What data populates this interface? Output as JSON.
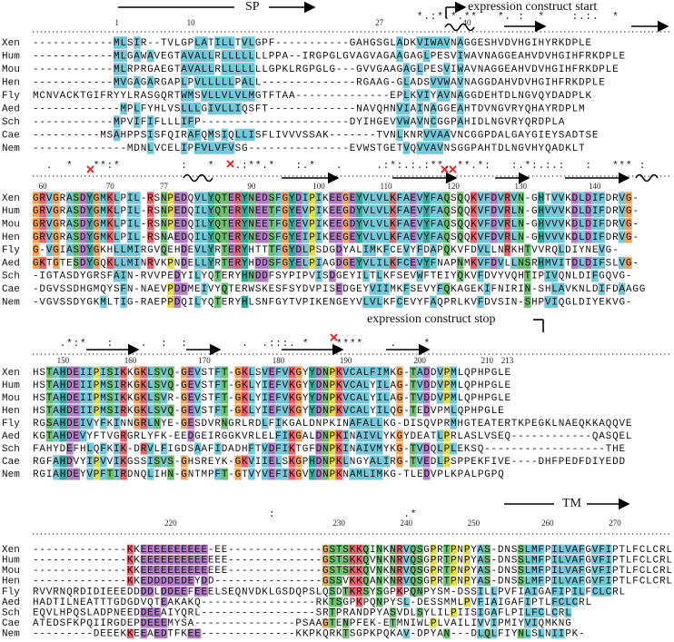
{
  "annotations": {
    "sp": "SP",
    "construct_start": "expression construct start",
    "construct_stop": "expression construct stop",
    "tm": "TM"
  },
  "blocks": [
    {
      "ruler": [
        1,
        10,
        27,
        40
      ],
      "conservation": "                                                         *.:*.*.**   *. :  *    :.:.  *",
      "rows": [
        {
          "name": "Xen",
          "sequence": "------------MLSIR--TVLGPLATILLTVLGPF-----------GAHGSGLADKVIWAVNAGGESHVDVHGIHYRKDPLE"
        },
        {
          "name": "Hum",
          "sequence": "------------MLGAWAVEGTAVALLRLLLLLLLPPA--IRGPGLGVAGVAGAAGAGLPESVIWAVNAGGEAHVDVHGIHFRKDPLE"
        },
        {
          "name": "Mou",
          "sequence": "------------MLRPRGAEGTAVALLRLLLLLLLGPKLRGPGLG---GVVGAAGAGLPESVIWAVNAGGEAHVDVHGIHFRKDPLE"
        },
        {
          "name": "Hen",
          "sequence": "------------MVGAGARGAPLPVLLLLLPALL--------------RGAAG-GLADSVVWAVNAGGDAHVDVHGIHFRKDPLE"
        },
        {
          "name": "Fly",
          "sequence": "MCNVACKTGIFRYYLRASGQRTWMSVLLVLVLMGTFTAA--------------EPLKVIYAVNAGGDEHTDLNGVQYDADPLK"
        },
        {
          "name": "Aed",
          "sequence": "-------------MPLFYHLVSLLLGIVLLIQSFT-------------NAVQHNVIAINAGGEAHTDVNGVRYQHAYRDPLM"
        },
        {
          "name": "Sch",
          "sequence": "------------MPVIFIFLLLIFP----------------------DYIHGEVVWAVNCGGPAHIDLNGVRYQRDPLA"
        },
        {
          "name": "Cae",
          "sequence": "----------MSAHPPSISFQIRAFQMSIQLLISFLIVVVSSAK-------TVNLKNRVVAAVNCGGPDALGAYGIEYSADTSE"
        },
        {
          "name": "Nem",
          "sequence": "--------------MDNLVCELIPFVLVFVSG---------------EVWSTGETVQVVAVNSGGPAHTDLNGVHYQADKLT"
        }
      ]
    },
    {
      "ruler": [
        60,
        70,
        77,
        90,
        100,
        110,
        120,
        130,
        140
      ],
      "conservation": "  .  *   **:*         :   *   .:**.*   :.*   .     .:*:.:.:**. **.*:   :.*:.:.:   :   *** :",
      "rows": [
        {
          "name": "Xen",
          "sequence": "GRVGRASDYGMKLPIL-RSNPEDQVLYQTERYNEDSFGYDIPIKEEGEYVLVLKFAEVYFAQSQQKVFDVRVN-GHTVVKDLDIFDRVG-"
        },
        {
          "name": "Hum",
          "sequence": "GRVGRASDYGMKLPIL-RSNPEDQILYQTERYNEETFGYEVPIKEEGDYVLVLKFAEVYFAQSQQKVFDVRLN-GHVVVKDLDIFDRVG-"
        },
        {
          "name": "Mou",
          "sequence": "GRVGRASDYGMKLPIL-RSNPEDQILYQTERYNEETFGYEVPIKEEGDYVLVLKFAEVYFAQSQQKVFDVRLN-GHVVVKDLDIFDRVG-"
        },
        {
          "name": "Hen",
          "sequence": "GRVGRASDYGMKLPIL-RSNAEDQILYQTERYNEDSFGYEIPIKEEGEYVLVLKFAEVYFAQSQQKVFDVRLN-GHVVVKDLDIFDRVG-"
        },
        {
          "name": "Fly",
          "sequence": "G-VGIASDYGKHLLMIRGVQEHDEVLYRTERYHTTTFGYDLPSDGDYALIMKFCEVYFDAPQKVFDVLLNRKHTVVRQLDIYNEVG-"
        },
        {
          "name": "Aed",
          "sequence": "GKTGTESDYGQKLLMINRVKPNDELLYRTERYHDDSFGYELPIAGDGEYVLILKFCEVYFNAPNMKVFDVLLNSRHMVITDLDIFSLVG-"
        },
        {
          "name": "Sch",
          "sequence": "-IGTASDYGRSFAIN-RVVPEDYILYQTERYHNDDFSYPIPVISDGEYILTLKFSEVWFTEIYQKVFDVYVQHTIPIVQNLDIFGQVG-"
        },
        {
          "name": "Cae",
          "sequence": "-DGVSSDHGMQYSFN-NAEVPDDMEIVYQTERWSKESFSYDVPISEDGEYVIIMKFSEVYFQKAGEKIFNIRIN-SHLAVKNLDIFDAAGG"
        },
        {
          "name": "Nem",
          "sequence": "-VGVSSDYGKMLTIG-RAEPPDQILYQTERYHLSNFGYTVPIKENGEYVLVLKFCEVYFAQPRLKVFDVSIN-SHPVIQGLDIYEKVG-"
        }
      ]
    },
    {
      "ruler": [
        150,
        160,
        170,
        180,
        190,
        200,
        210,
        213
      ],
      "conservation": "    .*:*   :    .  :  :   .    .  .:::. *    ****    .    *",
      "rows": [
        {
          "name": "Xen",
          "sequence": "HSTAHDEIIPISIKKGKLSVQ-GEVSTFT-GKLSVEFVKGYYDNPKVCALFIMKG-TADDVPMLQPHPGLE"
        },
        {
          "name": "Hum",
          "sequence": "HSTAHDEIIPMSIRKGKLSVQ-GEVSTFT-GKLYIEFVKGYYDNPKVCALYILAG-TVDDVPMLQPHPGLE"
        },
        {
          "name": "Mou",
          "sequence": "HSTAHDEIIPMSIKKGKLSVR-GEVSTFT-GKLYIEFVKGYYDNPKVCALYILAG-TVDDVPMLQPHPGLE"
        },
        {
          "name": "Hen",
          "sequence": "HSTAHDEIIPMSIRKGKLSVQ-GEVSTFT-GKLYIEFVKGYYDNPKVCALYILQG-TEDVPMLQPHPGLE"
        },
        {
          "name": "Fly",
          "sequence": "RGSAHDEIVYFKINNGRLNYE-GESDVRNGRLRDLFIKGALDNPKINAFALLKG-DISQVPRMHGTEATERTKPEGKLNAEQKKAQQVE"
        },
        {
          "name": "Aed",
          "sequence": "KGTAHDEVYFTVGRGRLYFK-EEDGEIRGGKVRLELFIKGALDNPKINAIVLYKGYDEATLPRLASLVSEQ------------QASQEL"
        },
        {
          "name": "Sch",
          "sequence": "FAHYDEFHLQFKIK-DRVLFIGDSAAFIDADHFTVDFIKTGFDNPKINAIVMYKG-TVDQLPLEKSQ------------------THE"
        },
        {
          "name": "Cae",
          "sequence": "RGFAHDVYIPVVIKGSSISVS-GHSREYK-GKVIIELSKGPHDNPKLNGYALIRG-TVEDLPSPPEKFIVE----DHFPEDFDIYEDD"
        },
        {
          "name": "Nem",
          "sequence": "RGIAHDEYVPFTIRDNQLIHN-GNTMPFT-GTVYVEFIKGVYDNPKNAMLIMKG-TLEDVPLKPALPGPQ"
        }
      ]
    },
    {
      "ruler": [
        220,
        230,
        240,
        250,
        260,
        270
      ],
      "conservation": "                                   :                   .*",
      "rows": [
        {
          "name": "Xen",
          "sequence": "--------------KKEEEEEEEEEE-EE--------------GSTSKKQINKNRVQSGPRTPNPYAS-DNSSLMFPILVAFGVFIPTLFCLCRL"
        },
        {
          "name": "Hum",
          "sequence": "--------------KKEEEEEEEEEEEEE--------------GSTSKKQVNKNRVQSGPRTPNPYAS-DNSSLMFPILVAFGVFIPTLFCLCRL"
        },
        {
          "name": "Mou",
          "sequence": "--------------KKEEEEEEEEEEEEE--------------GSTSKKQVNKNRVQSGPRTPNPYAS-DNSSLMFPILVAFGVFIPTLFCLCRL"
        },
        {
          "name": "Hen",
          "sequence": "--------------KKEDDDDEDEYDD----------------GSSVKKQANKNRVQSGPRTPNPYAS-DNSSLMFPILVAFGVFIPTLFCLCRL"
        },
        {
          "name": "Fly",
          "sequence": "RVVRNQRDIDIEEEDDDDLDDEEFEEELSEQNVDKLGSDQPSLQSDTKRSYSGPKPQNPYSM-DSSILLPVFIAIGAFIPILFCLCRL"
        },
        {
          "name": "Aed",
          "sequence": "HADTILNEATTTGDGDVQTEAKAKQ-----------------RKTSGPKPQNPYSL-DESSMMLPVFIAIGAFIPTLFCLCRL"
        },
        {
          "name": "Sch",
          "sequence": "EQVLHPQSLADPNEEDDEEAIYQRL-----------------SRTPRANDPYASVDLSYLILPIISIGAFLPILFCLCRL"
        },
        {
          "name": "Cae",
          "sequence": "ATEDSFKPQIIRGDEPDEEEMYSA---------------PSAAGTENPFEK-ETMNIWLPLVAILIVVIPMIYVIQMKNG"
        },
        {
          "name": "Nem",
          "sequence": "---------DEEEKKEEAEDTFKEE--------------KKPKQRKTSGPKPQKAV-DPYAN---DLQLFIYNLSLNIIPK-"
        }
      ]
    }
  ]
}
